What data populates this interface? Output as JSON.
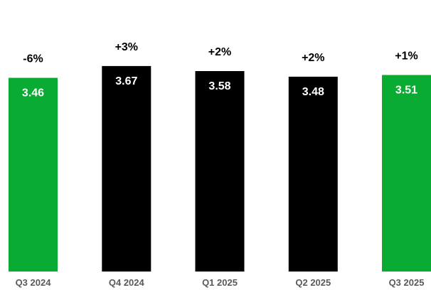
{
  "chart_data": {
    "type": "bar",
    "categories": [
      "Q3 2024",
      "Q4 2024",
      "Q1 2025",
      "Q2 2025",
      "Q3 2025"
    ],
    "values": [
      3.46,
      3.67,
      3.58,
      3.48,
      3.51
    ],
    "value_labels": [
      "3.46",
      "3.67",
      "3.58",
      "3.48",
      "3.51"
    ],
    "change_labels": [
      "-6%",
      "+3%",
      "+2%",
      "+2%",
      "+1%"
    ],
    "bar_colors": [
      "#0aab32",
      "#000000",
      "#000000",
      "#000000",
      "#0aab32"
    ],
    "value_label_color": "#ffffff",
    "change_label_color": "#000000",
    "tick_label_color": "#595959",
    "title": "",
    "xlabel": "",
    "ylabel": "",
    "grid": false,
    "legend": "none"
  }
}
